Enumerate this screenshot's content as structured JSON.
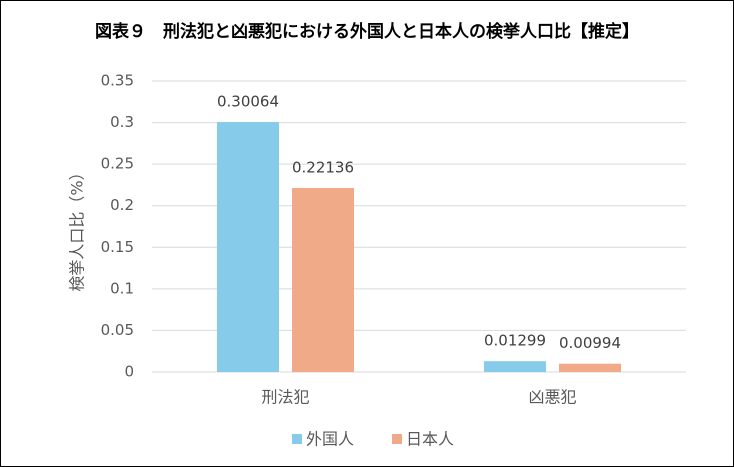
{
  "chart_data": {
    "type": "bar",
    "title": "図表９　刑法犯と凶悪犯における外国人と日本人の検挙人口比【推定】",
    "y_label": "検挙人口比（%）",
    "categories": [
      "刑法犯",
      "凶悪犯"
    ],
    "series": [
      {
        "name": "外国人",
        "color": "#86cbea",
        "values": [
          0.30064,
          0.01299
        ]
      },
      {
        "name": "日本人",
        "color": "#f0aa87",
        "values": [
          0.22136,
          0.00994
        ]
      }
    ],
    "ylim": [
      0,
      0.35
    ],
    "yticks": [
      0,
      0.05,
      0.1,
      0.15,
      0.2,
      0.25,
      0.3,
      0.35
    ],
    "grid": true,
    "legend": "bottom"
  }
}
